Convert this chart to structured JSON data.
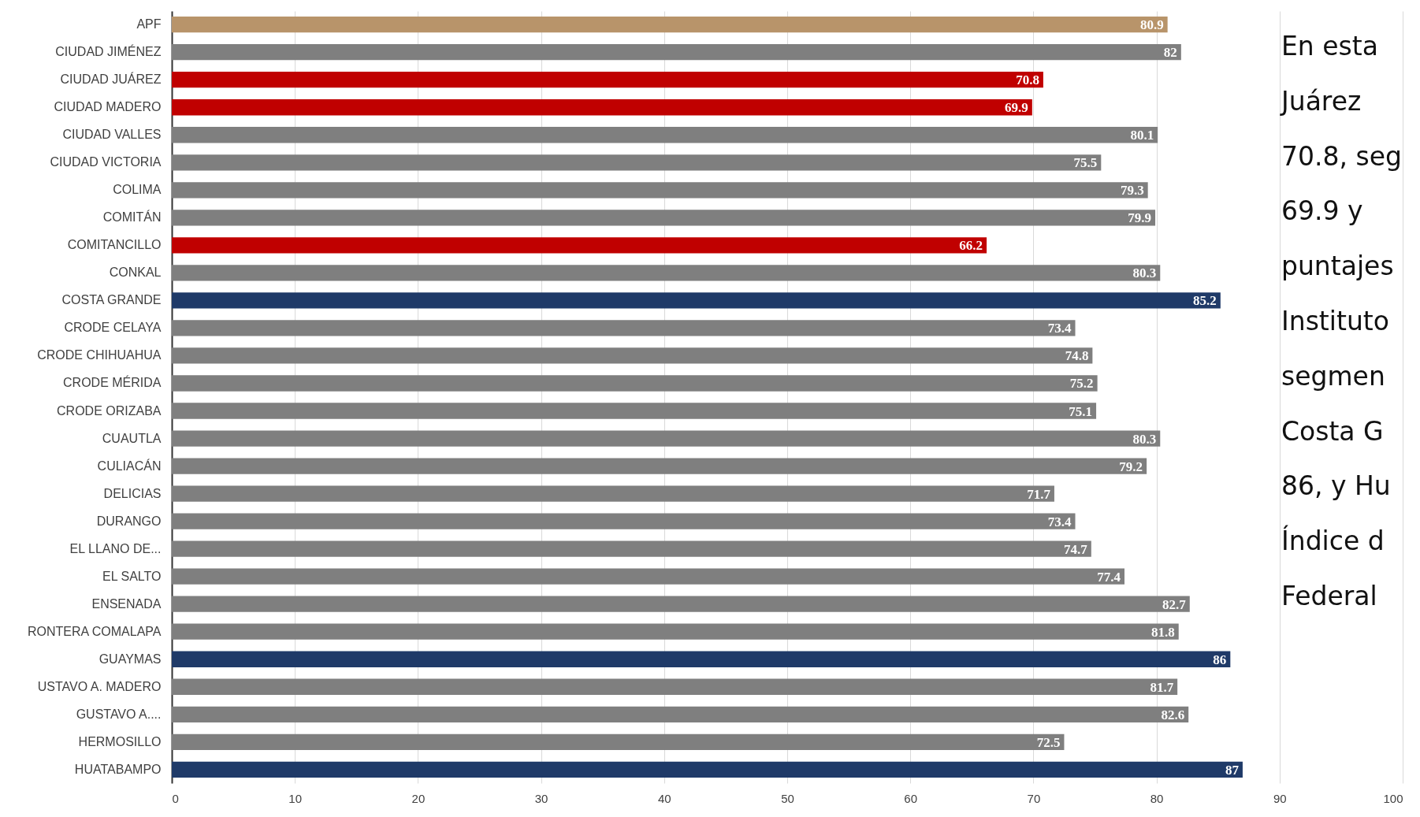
{
  "chart_data": {
    "type": "bar",
    "orientation": "horizontal",
    "categories": [
      "APF",
      "CIUDAD JIMÉNEZ",
      "CIUDAD JUÁREZ",
      "CIUDAD MADERO",
      "CIUDAD VALLES",
      "CIUDAD VICTORIA",
      "COLIMA",
      "COMITÁN",
      "COMITANCILLO",
      "CONKAL",
      "COSTA GRANDE",
      "CRODE CELAYA",
      "CRODE CHIHUAHUA",
      "CRODE MÉRIDA",
      "CRODE ORIZABA",
      "CUAUTLA",
      "CULIACÁN",
      "DELICIAS",
      "DURANGO",
      "EL LLANO DE...",
      "EL SALTO",
      "ENSENADA",
      "RONTERA COMALAPA",
      "GUAYMAS",
      "USTAVO A. MADERO",
      "GUSTAVO A....",
      "HERMOSILLO",
      "HUATABAMPO"
    ],
    "values": [
      80.9,
      82,
      70.8,
      69.9,
      80.1,
      75.5,
      79.3,
      79.9,
      66.2,
      80.3,
      85.2,
      73.4,
      74.8,
      75.2,
      75.1,
      80.3,
      79.2,
      71.7,
      73.4,
      74.7,
      77.4,
      82.7,
      81.8,
      86,
      81.7,
      82.6,
      72.5,
      87
    ],
    "colors": [
      "#b8946a",
      "#7f7f7f",
      "#c00000",
      "#c00000",
      "#7f7f7f",
      "#7f7f7f",
      "#7f7f7f",
      "#7f7f7f",
      "#c00000",
      "#7f7f7f",
      "#1f3a68",
      "#7f7f7f",
      "#7f7f7f",
      "#7f7f7f",
      "#7f7f7f",
      "#7f7f7f",
      "#7f7f7f",
      "#7f7f7f",
      "#7f7f7f",
      "#7f7f7f",
      "#7f7f7f",
      "#7f7f7f",
      "#7f7f7f",
      "#1f3a68",
      "#7f7f7f",
      "#7f7f7f",
      "#7f7f7f",
      "#1f3a68"
    ],
    "xlim": [
      0,
      100
    ],
    "xticks": [
      0,
      10,
      20,
      30,
      40,
      50,
      60,
      70,
      80,
      90,
      100
    ],
    "grid": "x",
    "data_labels": true,
    "annotations": [
      "En esta",
      "Juárez",
      "70.8, seg",
      "69.9  y",
      "puntajes",
      "Instituto",
      "segmen",
      "Costa G",
      "86, y Hu",
      "Índice d",
      "Federal"
    ]
  }
}
